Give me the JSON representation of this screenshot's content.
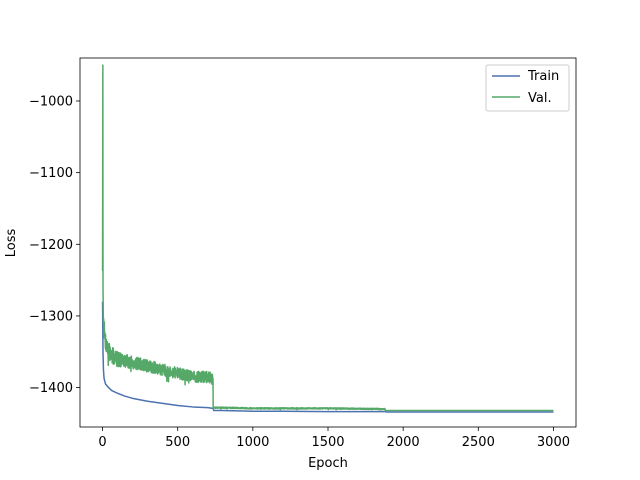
{
  "chart_data": {
    "type": "line",
    "title": "",
    "xlabel": "Epoch",
    "ylabel": "Loss",
    "xlim": [
      -150,
      3150
    ],
    "ylim": [
      -1455,
      -940
    ],
    "xticks": [
      0,
      500,
      1000,
      1500,
      2000,
      2500,
      3000
    ],
    "xtick_labels": [
      "0",
      "500",
      "1000",
      "1500",
      "2000",
      "2500",
      "3000"
    ],
    "yticks": [
      -1000,
      -1100,
      -1200,
      -1300,
      -1400
    ],
    "ytick_labels": [
      "−1000",
      "−1100",
      "−1200",
      "−1300",
      "−1400"
    ],
    "grid": false,
    "legend_position": "top-right",
    "series": [
      {
        "name": "Train",
        "color": "#4c72b0",
        "x": [
          0,
          3,
          6,
          10,
          20,
          40,
          60,
          100,
          150,
          200,
          300,
          400,
          500,
          600,
          700,
          735,
          740,
          800,
          1000,
          1200,
          1500,
          1880,
          1890,
          2000,
          2500,
          3000
        ],
        "y": [
          -1280,
          -1350,
          -1375,
          -1387,
          -1395,
          -1400,
          -1404,
          -1408,
          -1412,
          -1415,
          -1419,
          -1422,
          -1425,
          -1427,
          -1428,
          -1429,
          -1432,
          -1432,
          -1433,
          -1433,
          -1433.5,
          -1433.5,
          -1434,
          -1434,
          -1434,
          -1434
        ],
        "noise": 0,
        "noise_seed": 1
      },
      {
        "name": "Val.",
        "color": "#55a868",
        "x": [
          0,
          2,
          3,
          5,
          8,
          15,
          30,
          60,
          100,
          200,
          300,
          400,
          500,
          600,
          700,
          735,
          736,
          800,
          1000,
          1500,
          1880,
          1881,
          2000,
          3000
        ],
        "y": [
          -1237,
          -950,
          -1260,
          -1300,
          -1310,
          -1330,
          -1345,
          -1355,
          -1360,
          -1365,
          -1370,
          -1375,
          -1380,
          -1385,
          -1385,
          -1388,
          -1428,
          -1428,
          -1429,
          -1429,
          -1430,
          -1432,
          -1432,
          -1432
        ],
        "noise": 8,
        "noise_seed": 7
      }
    ]
  }
}
